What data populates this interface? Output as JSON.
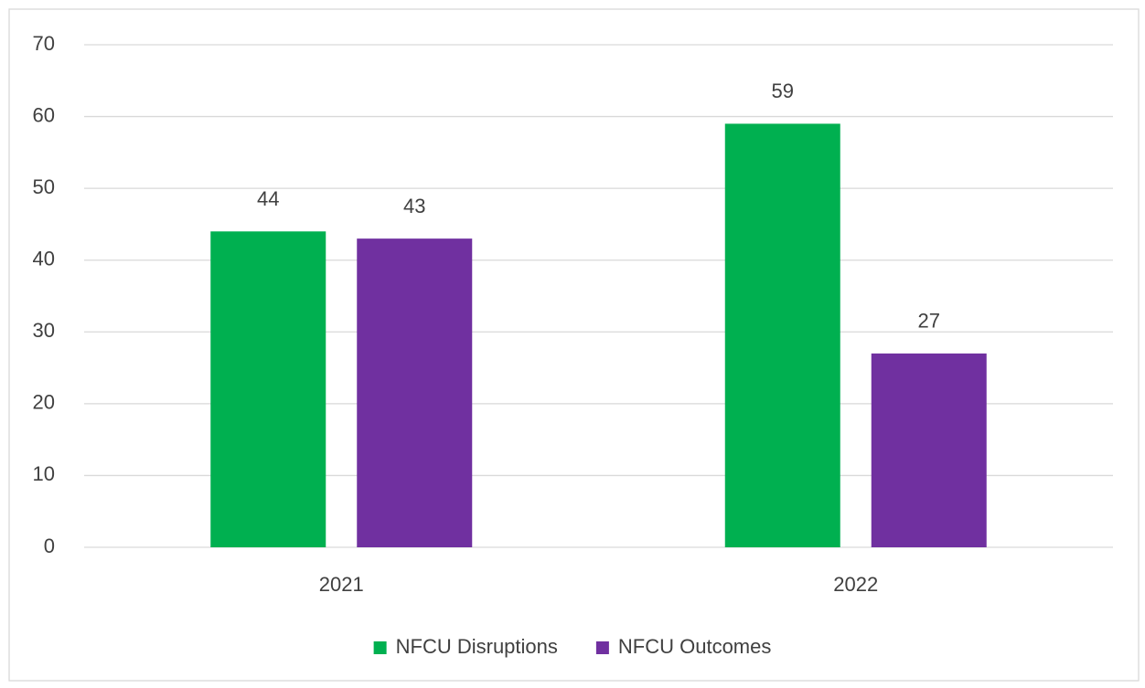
{
  "chart_data": {
    "type": "bar",
    "categories": [
      "2021",
      "2022"
    ],
    "series": [
      {
        "name": "NFCU Disruptions",
        "color": "#00b050",
        "values": [
          44,
          59
        ]
      },
      {
        "name": "NFCU Outcomes",
        "color": "#7030a0",
        "values": [
          43,
          27
        ]
      }
    ],
    "ylim": [
      0,
      70
    ],
    "yticks": [
      0,
      10,
      20,
      30,
      40,
      50,
      60,
      70
    ],
    "grid": true,
    "data_labels": true,
    "legend": "bottom"
  }
}
